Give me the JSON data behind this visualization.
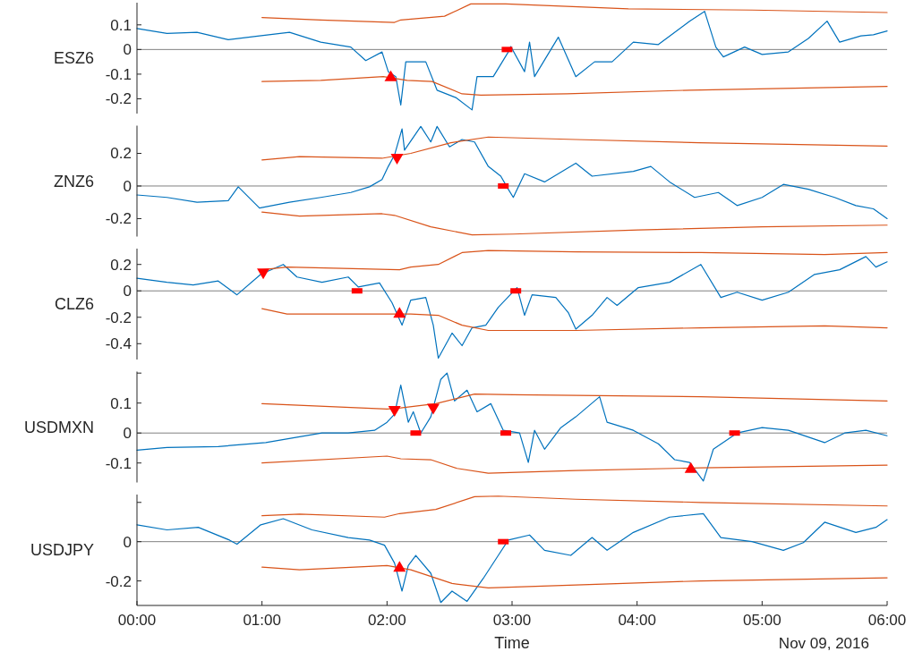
{
  "chart_data": [
    {
      "type": "line",
      "ylabel": "ESZ6",
      "xlim": [
        0,
        6
      ],
      "ylim": [
        -0.26,
        0.19
      ],
      "yticks": [
        -0.2,
        -0.1,
        0,
        0.1
      ],
      "tick_labels": "y",
      "ref_lines": [
        {
          "axis": "y",
          "value": 0,
          "color": "#808080"
        }
      ],
      "series": [
        {
          "type": "line",
          "color": "#0072bd",
          "x": [
            0,
            0.24,
            0.48,
            0.73,
            0.98,
            1.22,
            1.47,
            1.71,
            1.83,
            1.96,
            2.01,
            2.07,
            2.11,
            2.15,
            2.31,
            2.4,
            2.55,
            2.68,
            2.72,
            2.85,
            2.97,
            2.99,
            3.1,
            3.14,
            3.18,
            3.37,
            3.51,
            3.66,
            3.8,
            3.97,
            4.17,
            4.42,
            4.54,
            4.63,
            4.69,
            4.86,
            5.0,
            5.21,
            5.37,
            5.52,
            5.62,
            5.79,
            5.89,
            6.0
          ],
          "values": [
            0.085,
            0.065,
            0.07,
            0.04,
            0.055,
            0.07,
            0.03,
            0.01,
            -0.045,
            -0.01,
            -0.09,
            -0.11,
            -0.225,
            -0.05,
            -0.05,
            -0.165,
            -0.195,
            -0.245,
            -0.11,
            -0.11,
            -0.01,
            0.012,
            -0.09,
            0.03,
            -0.11,
            0.05,
            -0.11,
            -0.05,
            -0.05,
            0.03,
            0.02,
            0.115,
            0.155,
            0.01,
            -0.03,
            0.01,
            -0.02,
            -0.01,
            0.045,
            0.115,
            0.03,
            0.055,
            0.06,
            0.075
          ]
        },
        {
          "type": "line",
          "color": "#d95319",
          "x": [
            1,
            1.47,
            2.06,
            2.11,
            2.46,
            2.67,
            2.95,
            3.93,
            4.92,
            6
          ],
          "values": [
            0.13,
            0.12,
            0.11,
            0.12,
            0.135,
            0.185,
            0.185,
            0.165,
            0.16,
            0.15
          ]
        },
        {
          "type": "line",
          "color": "#d95319",
          "x": [
            1,
            1.47,
            1.97,
            2.16,
            2.36,
            2.6,
            2.75,
            3.44,
            4.42,
            6
          ],
          "values": [
            -0.13,
            -0.125,
            -0.11,
            -0.125,
            -0.13,
            -0.18,
            -0.185,
            -0.18,
            -0.165,
            -0.15
          ]
        },
        {
          "type": "scatter",
          "marker": "triangle",
          "color": "#ff0000",
          "x": [
            2.03
          ],
          "values": [
            -0.11
          ]
        },
        {
          "type": "scatter",
          "marker": "square",
          "color": "#ff0000",
          "x": [
            2.96
          ],
          "values": [
            0
          ]
        }
      ]
    },
    {
      "type": "line",
      "ylabel": "ZNZ6",
      "xlim": [
        0,
        6
      ],
      "ylim": [
        -0.31,
        0.37
      ],
      "yticks": [
        -0.2,
        0,
        0.2
      ],
      "tick_labels": "y",
      "ref_lines": [
        {
          "axis": "y",
          "value": 0,
          "color": "#808080"
        }
      ],
      "series": [
        {
          "type": "line",
          "color": "#0072bd",
          "x": [
            0,
            0.24,
            0.48,
            0.73,
            0.81,
            0.98,
            1.22,
            1.47,
            1.71,
            1.86,
            1.96,
            2.01,
            2.06,
            2.12,
            2.14,
            2.27,
            2.35,
            2.4,
            2.5,
            2.6,
            2.7,
            2.81,
            2.91,
            2.97,
            3.01,
            3.1,
            3.26,
            3.51,
            3.64,
            3.97,
            4.11,
            4.26,
            4.46,
            4.65,
            4.8,
            5.0,
            5.17,
            5.37,
            5.58,
            5.75,
            5.89,
            6.0
          ],
          "values": [
            -0.055,
            -0.07,
            -0.1,
            -0.09,
            -0.005,
            -0.135,
            -0.1,
            -0.07,
            -0.04,
            -0.005,
            0.04,
            0.12,
            0.19,
            0.35,
            0.22,
            0.365,
            0.27,
            0.365,
            0.24,
            0.285,
            0.27,
            0.12,
            0.06,
            -0.02,
            -0.07,
            0.075,
            0.025,
            0.14,
            0.06,
            0.09,
            0.12,
            0.025,
            -0.07,
            -0.04,
            -0.12,
            -0.07,
            0.01,
            -0.02,
            -0.07,
            -0.12,
            -0.14,
            -0.2
          ]
        },
        {
          "type": "line",
          "color": "#d95319",
          "x": [
            1,
            1.3,
            1.96,
            2.19,
            2.51,
            2.81,
            3.51,
            4.5,
            6
          ],
          "values": [
            0.16,
            0.18,
            0.17,
            0.2,
            0.265,
            0.3,
            0.285,
            0.265,
            0.245
          ]
        },
        {
          "type": "line",
          "color": "#d95319",
          "x": [
            1,
            1.3,
            1.96,
            2.06,
            2.35,
            2.68,
            3.01,
            4.01,
            5.0,
            6
          ],
          "values": [
            -0.16,
            -0.185,
            -0.17,
            -0.18,
            -0.25,
            -0.3,
            -0.295,
            -0.27,
            -0.25,
            -0.24
          ]
        },
        {
          "type": "scatter",
          "marker": "triangle-down",
          "color": "#ff0000",
          "x": [
            2.08
          ],
          "values": [
            0.17
          ]
        },
        {
          "type": "scatter",
          "marker": "square",
          "color": "#ff0000",
          "x": [
            2.93
          ],
          "values": [
            0
          ]
        }
      ]
    },
    {
      "type": "line",
      "ylabel": "CLZ6",
      "xlim": [
        0,
        6
      ],
      "ylim": [
        -0.52,
        0.32
      ],
      "yticks": [
        -0.4,
        -0.2,
        0,
        0.2
      ],
      "tick_labels": "y",
      "ref_lines": [
        {
          "axis": "y",
          "value": 0,
          "color": "#808080"
        }
      ],
      "series": [
        {
          "type": "line",
          "color": "#0072bd",
          "x": [
            0,
            0.24,
            0.45,
            0.65,
            0.8,
            0.99,
            1.17,
            1.28,
            1.48,
            1.69,
            1.77,
            1.94,
            2.04,
            2.12,
            2.19,
            2.31,
            2.37,
            2.41,
            2.52,
            2.6,
            2.68,
            2.79,
            2.89,
            3.04,
            3.1,
            3.16,
            3.35,
            3.45,
            3.51,
            3.64,
            3.76,
            3.84,
            4.01,
            4.26,
            4.51,
            4.67,
            4.8,
            5.0,
            5.21,
            5.42,
            5.62,
            5.83,
            5.91,
            6.0
          ],
          "values": [
            0.095,
            0.065,
            0.045,
            0.075,
            -0.03,
            0.125,
            0.2,
            0.105,
            0.065,
            0.105,
            0.03,
            0.06,
            -0.09,
            -0.26,
            -0.07,
            -0.05,
            -0.26,
            -0.51,
            -0.32,
            -0.415,
            -0.28,
            -0.26,
            -0.125,
            0.025,
            -0.185,
            -0.03,
            -0.05,
            -0.165,
            -0.29,
            -0.185,
            -0.05,
            -0.11,
            0.025,
            0.065,
            0.2,
            -0.05,
            -0.01,
            -0.07,
            -0.01,
            0.125,
            0.16,
            0.26,
            0.18,
            0.22
          ]
        },
        {
          "type": "line",
          "color": "#d95319",
          "x": [
            1,
            1.2,
            2.1,
            2.19,
            2.41,
            2.6,
            2.81,
            3.51,
            4.51,
            5.5,
            6
          ],
          "values": [
            0.16,
            0.18,
            0.16,
            0.18,
            0.2,
            0.29,
            0.305,
            0.295,
            0.29,
            0.275,
            0.29
          ]
        },
        {
          "type": "line",
          "color": "#d95319",
          "x": [
            1,
            1.2,
            2.19,
            2.41,
            2.6,
            2.81,
            3.51,
            4.51,
            5.5,
            6
          ],
          "values": [
            -0.135,
            -0.175,
            -0.175,
            -0.185,
            -0.26,
            -0.3,
            -0.3,
            -0.28,
            -0.265,
            -0.28
          ]
        },
        {
          "type": "scatter",
          "marker": "triangle-down",
          "color": "#ff0000",
          "x": [
            1.01
          ],
          "values": [
            0.135
          ]
        },
        {
          "type": "scatter",
          "marker": "triangle",
          "color": "#ff0000",
          "x": [
            2.1
          ],
          "values": [
            -0.17
          ]
        },
        {
          "type": "scatter",
          "marker": "square",
          "color": "#ff0000",
          "x": [
            1.76,
            3.03
          ],
          "values": [
            0,
            0
          ]
        }
      ]
    },
    {
      "type": "line",
      "ylabel": "USDMXN",
      "xlim": [
        0,
        6
      ],
      "ylim": [
        -0.165,
        0.205
      ],
      "yticks": [
        {
          "value": -0.1,
          "label": "-0.1"
        },
        {
          "value": 0,
          "label": "0"
        },
        {
          "value": 0.1,
          "label": "0.1"
        },
        {
          "value": 0.2,
          "label": null
        }
      ],
      "tick_labels": "y",
      "ref_lines": [
        {
          "axis": "y",
          "value": 0,
          "color": "#808080"
        }
      ],
      "series": [
        {
          "type": "line",
          "color": "#0072bd",
          "x": [
            0,
            0.24,
            0.65,
            1.03,
            1.28,
            1.48,
            1.69,
            1.9,
            2.0,
            2.06,
            2.11,
            2.17,
            2.21,
            2.27,
            2.35,
            2.43,
            2.48,
            2.54,
            2.64,
            2.72,
            2.83,
            2.93,
            3.06,
            3.13,
            3.18,
            3.26,
            3.39,
            3.51,
            3.7,
            3.76,
            3.97,
            4.17,
            4.3,
            4.42,
            4.53,
            4.61,
            4.8,
            5.0,
            5.21,
            5.5,
            5.66,
            5.83,
            6.0
          ],
          "values": [
            -0.057,
            -0.048,
            -0.045,
            -0.032,
            -0.014,
            0,
            0,
            0.009,
            0.036,
            0.063,
            0.16,
            0.036,
            0.071,
            0,
            0.054,
            0.179,
            0.2,
            0.107,
            0.143,
            0.071,
            0.098,
            0.009,
            0,
            -0.098,
            0.009,
            -0.054,
            0.018,
            0.054,
            0.121,
            0.036,
            0.009,
            -0.036,
            -0.089,
            -0.098,
            -0.16,
            -0.054,
            0,
            0.018,
            0.009,
            -0.032,
            0,
            0.009,
            -0.009
          ]
        },
        {
          "type": "line",
          "color": "#d95319",
          "x": [
            1,
            2.0,
            2.11,
            2.39,
            2.7,
            3.01,
            4.51,
            6
          ],
          "values": [
            0.098,
            0.08,
            0.084,
            0.098,
            0.13,
            0.128,
            0.121,
            0.107
          ]
        },
        {
          "type": "line",
          "color": "#d95319",
          "x": [
            1,
            2.0,
            2.11,
            2.35,
            2.56,
            2.81,
            3.51,
            4.51,
            6
          ],
          "values": [
            -0.1,
            -0.077,
            -0.086,
            -0.089,
            -0.118,
            -0.134,
            -0.125,
            -0.116,
            -0.107
          ]
        },
        {
          "type": "scatter",
          "marker": "triangle-down",
          "color": "#ff0000",
          "x": [
            2.06,
            2.37
          ],
          "values": [
            0.075,
            0.083
          ]
        },
        {
          "type": "scatter",
          "marker": "triangle",
          "color": "#ff0000",
          "x": [
            4.43
          ],
          "values": [
            -0.118
          ]
        },
        {
          "type": "scatter",
          "marker": "square",
          "color": "#ff0000",
          "x": [
            2.23,
            2.95,
            4.78
          ],
          "values": [
            0,
            0,
            0
          ]
        }
      ]
    },
    {
      "type": "line",
      "ylabel": "USDJPY",
      "xlabel": "Time",
      "annotations": [
        "Nov 09, 2016"
      ],
      "xlim": [
        0,
        6
      ],
      "xticks": [
        {
          "value": 0,
          "label": "00:00"
        },
        {
          "value": 1,
          "label": "01:00"
        },
        {
          "value": 2,
          "label": "02:00"
        },
        {
          "value": 3,
          "label": "03:00"
        },
        {
          "value": 4,
          "label": "04:00"
        },
        {
          "value": 5,
          "label": "05:00"
        },
        {
          "value": 6,
          "label": "06:00"
        }
      ],
      "ylim": [
        -0.325,
        0.24
      ],
      "yticks": [
        {
          "value": -0.2,
          "label": "-0.2"
        },
        {
          "value": 0,
          "label": "0"
        },
        {
          "value": 0.2,
          "label": null
        }
      ],
      "ref_lines": [
        {
          "axis": "y",
          "value": 0,
          "color": "#808080"
        }
      ],
      "series": [
        {
          "type": "line",
          "color": "#0072bd",
          "x": [
            0,
            0.24,
            0.49,
            0.74,
            0.8,
            0.99,
            1.17,
            1.4,
            1.69,
            1.86,
            1.98,
            2.06,
            2.12,
            2.17,
            2.23,
            2.35,
            2.43,
            2.52,
            2.64,
            2.77,
            2.89,
            2.97,
            3.14,
            3.26,
            3.47,
            3.64,
            3.76,
            3.97,
            4.26,
            4.53,
            4.67,
            4.92,
            5.17,
            5.33,
            5.5,
            5.75,
            5.91,
            6.0
          ],
          "values": [
            0.086,
            0.06,
            0.073,
            0.008,
            -0.013,
            0.086,
            0.117,
            0.06,
            0.021,
            0.008,
            -0.018,
            -0.109,
            -0.252,
            -0.122,
            -0.07,
            -0.161,
            -0.31,
            -0.252,
            -0.304,
            -0.187,
            -0.07,
            0.008,
            0.034,
            -0.044,
            -0.07,
            0.021,
            -0.044,
            0.047,
            0.125,
            0.143,
            0.021,
            0,
            -0.044,
            -0.005,
            0.099,
            0.047,
            0.073,
            0.112
          ]
        },
        {
          "type": "line",
          "color": "#d95319",
          "x": [
            1,
            1.3,
            1.98,
            2.1,
            2.39,
            2.7,
            2.89,
            3.51,
            4.51,
            6
          ],
          "values": [
            0.132,
            0.14,
            0.125,
            0.143,
            0.164,
            0.229,
            0.232,
            0.216,
            0.2,
            0.182
          ]
        },
        {
          "type": "line",
          "color": "#d95319",
          "x": [
            1,
            1.3,
            2.0,
            2.19,
            2.52,
            2.81,
            3.51,
            4.51,
            6
          ],
          "values": [
            -0.13,
            -0.143,
            -0.122,
            -0.143,
            -0.213,
            -0.236,
            -0.221,
            -0.2,
            -0.184
          ]
        },
        {
          "type": "scatter",
          "marker": "triangle",
          "color": "#ff0000",
          "x": [
            2.1
          ],
          "values": [
            -0.13
          ]
        },
        {
          "type": "scatter",
          "marker": "square",
          "color": "#ff0000",
          "x": [
            2.93
          ],
          "values": [
            0
          ]
        }
      ]
    }
  ]
}
